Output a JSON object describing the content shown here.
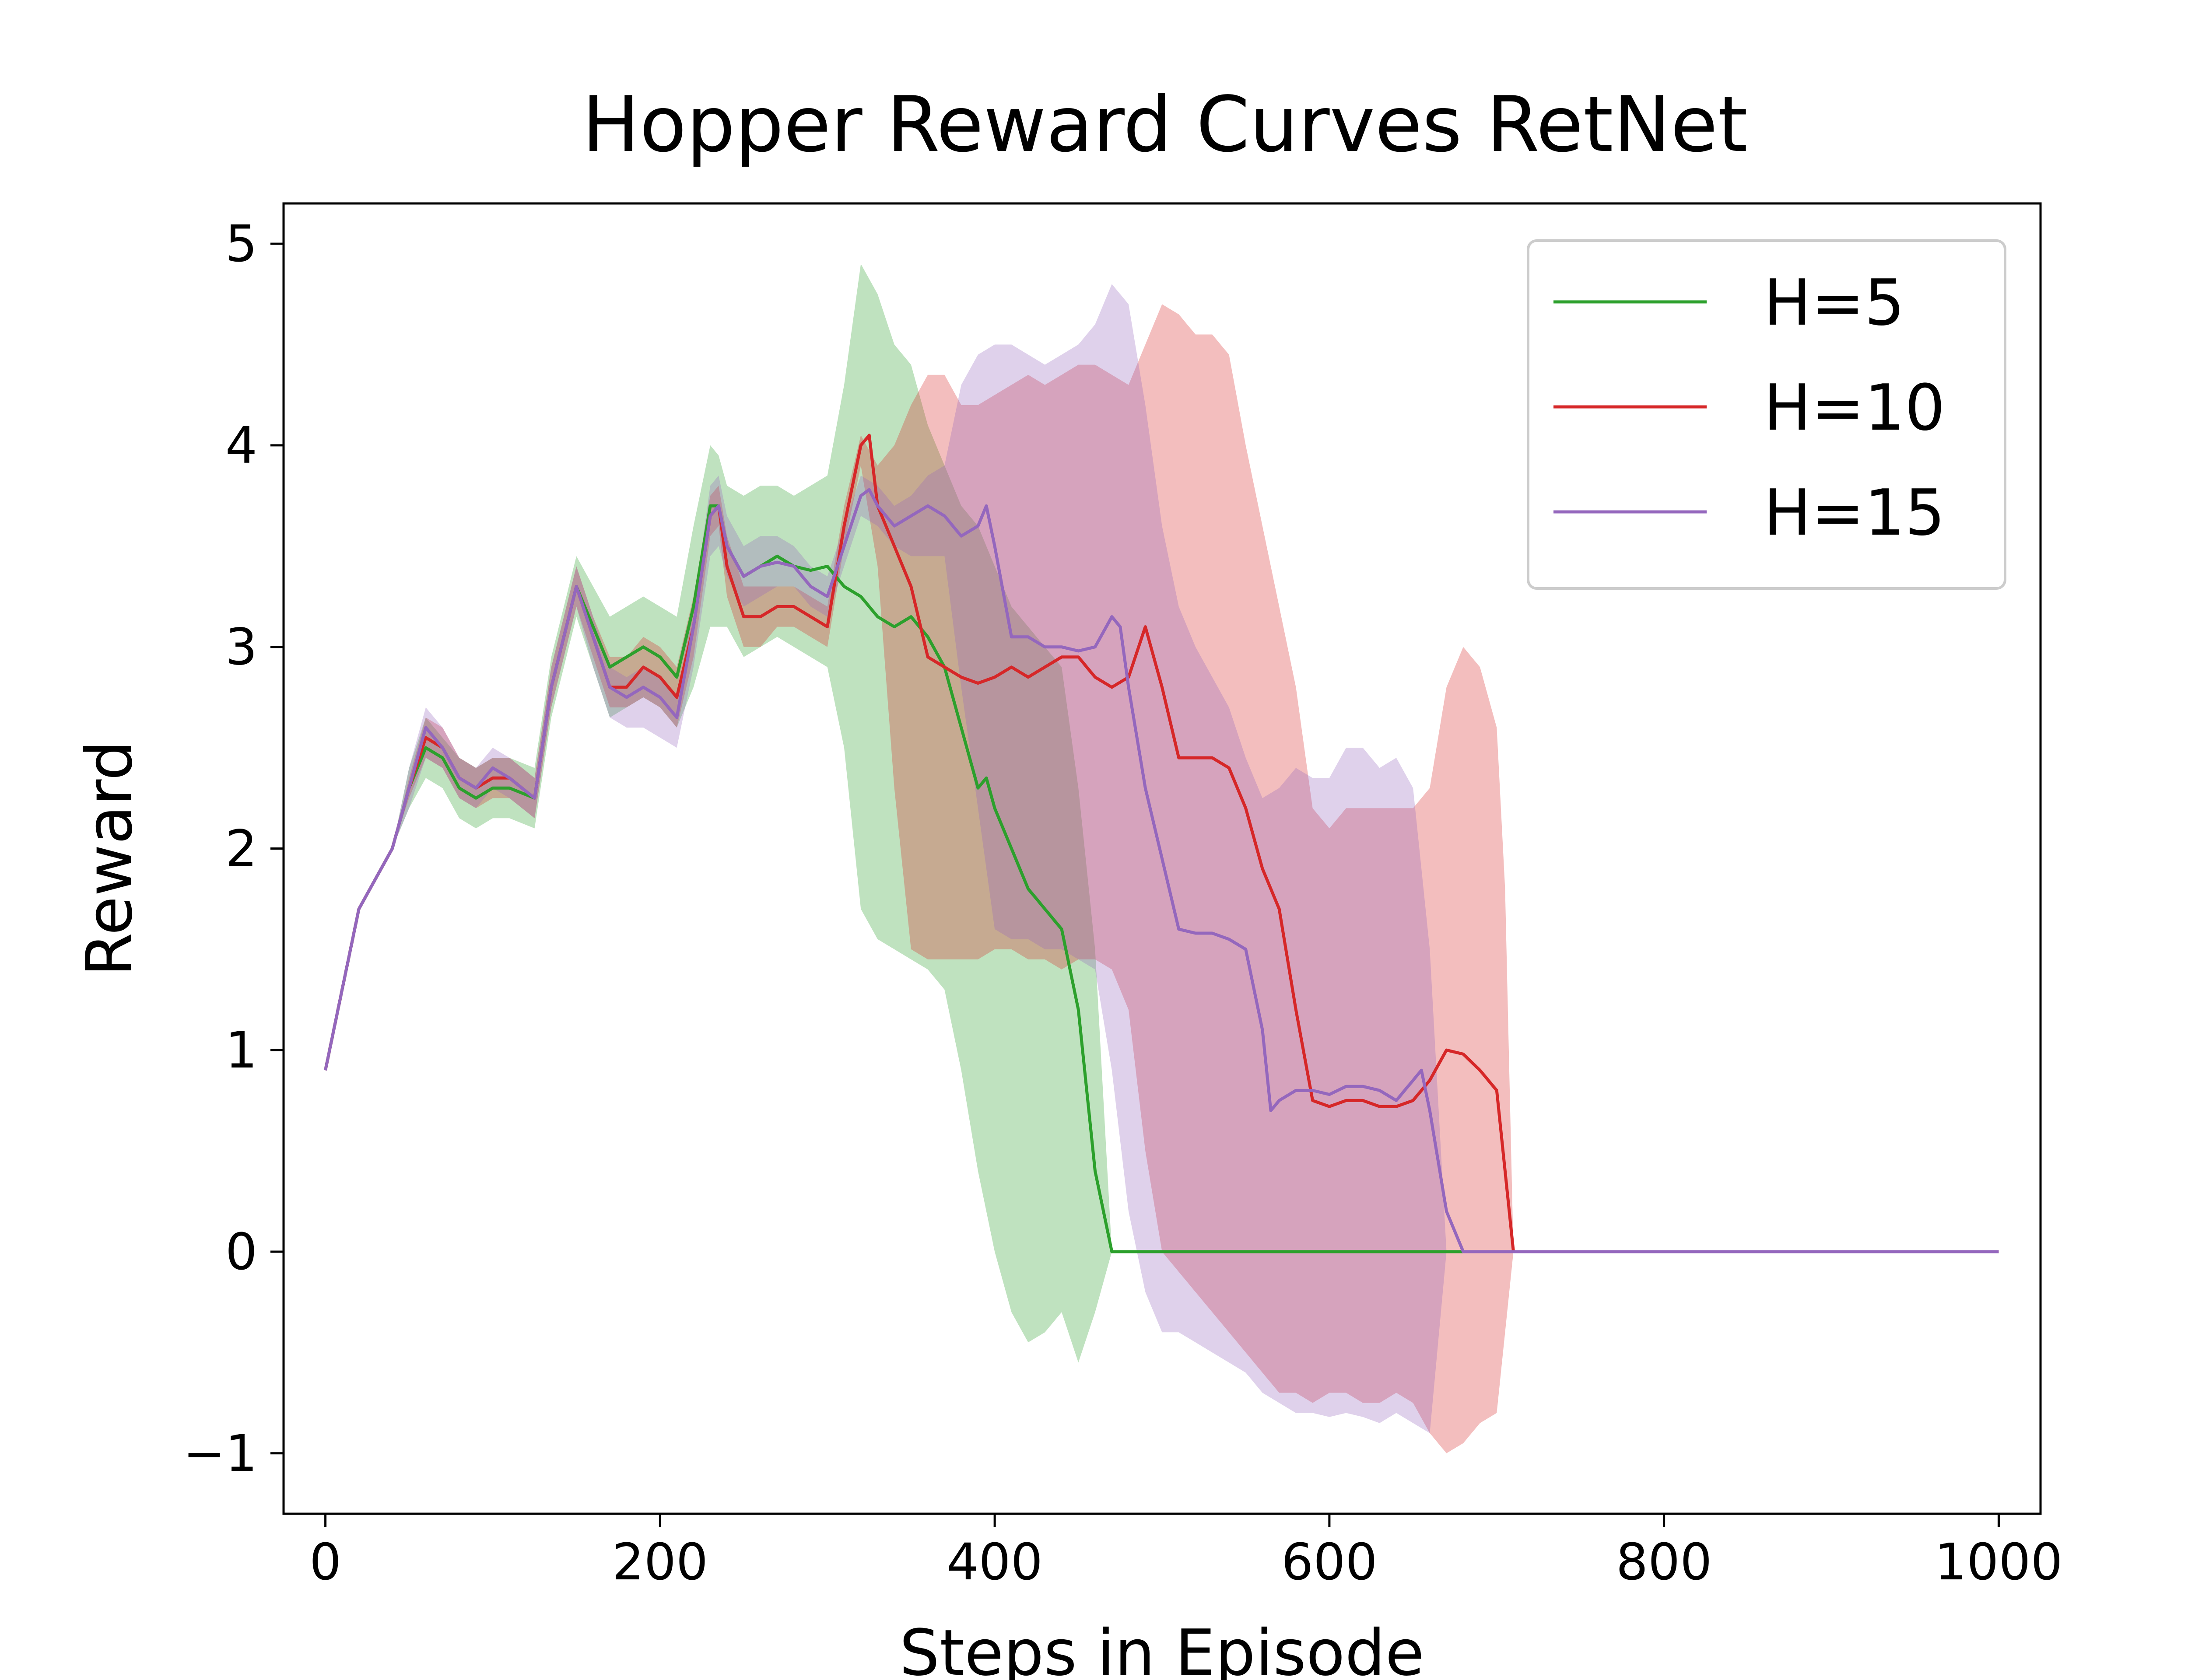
{
  "chart_data": {
    "type": "line",
    "title": "Hopper Reward Curves RetNet",
    "xlabel": "Steps in Episode",
    "ylabel": "Reward",
    "xlim": [
      -25,
      1025
    ],
    "ylim": [
      -1.3,
      5.2
    ],
    "xticks": [
      0,
      200,
      400,
      600,
      800,
      1000
    ],
    "xtick_labels": [
      "0",
      "200",
      "400",
      "600",
      "800",
      "1000"
    ],
    "yticks": [
      -1,
      0,
      1,
      2,
      3,
      4,
      5
    ],
    "ytick_labels": [
      "−1",
      "0",
      "1",
      "2",
      "3",
      "4",
      "5"
    ],
    "grid": false,
    "legend_position": "top-right",
    "series": [
      {
        "name": "H=5",
        "color": "#2ca02c",
        "x": [
          0,
          10,
          20,
          30,
          40,
          50,
          60,
          70,
          80,
          90,
          100,
          110,
          125,
          135,
          150,
          160,
          170,
          180,
          190,
          200,
          210,
          220,
          230,
          235,
          240,
          250,
          260,
          270,
          280,
          290,
          300,
          310,
          320,
          330,
          340,
          350,
          360,
          370,
          380,
          390,
          395,
          400,
          410,
          420,
          430,
          440,
          450,
          460,
          470,
          480,
          500,
          600,
          700,
          800,
          900,
          1000
        ],
        "y": [
          0.9,
          1.3,
          1.7,
          1.85,
          2.0,
          2.3,
          2.5,
          2.45,
          2.3,
          2.25,
          2.3,
          2.3,
          2.25,
          2.8,
          3.3,
          3.1,
          2.9,
          2.95,
          3.0,
          2.95,
          2.85,
          3.2,
          3.7,
          3.7,
          3.5,
          3.35,
          3.4,
          3.45,
          3.4,
          3.38,
          3.4,
          3.3,
          3.25,
          3.15,
          3.1,
          3.15,
          3.05,
          2.9,
          2.6,
          2.3,
          2.35,
          2.2,
          2.0,
          1.8,
          1.7,
          1.6,
          1.2,
          0.4,
          0.0,
          0.0,
          0.0,
          0.0,
          0.0,
          0.0,
          0.0,
          0.0
        ],
        "band_x": [
          0,
          10,
          20,
          30,
          40,
          50,
          60,
          70,
          80,
          90,
          100,
          110,
          125,
          135,
          150,
          160,
          170,
          180,
          190,
          200,
          210,
          220,
          230,
          235,
          240,
          250,
          260,
          270,
          280,
          290,
          300,
          310,
          320,
          330,
          340,
          350,
          360,
          370,
          380,
          390,
          400,
          410,
          420,
          430,
          440,
          450,
          460,
          470
        ],
        "band_upper": [
          0.9,
          1.3,
          1.7,
          1.85,
          2.0,
          2.4,
          2.65,
          2.55,
          2.45,
          2.4,
          2.45,
          2.45,
          2.4,
          2.95,
          3.45,
          3.3,
          3.15,
          3.2,
          3.25,
          3.2,
          3.15,
          3.6,
          4.0,
          3.95,
          3.8,
          3.75,
          3.8,
          3.8,
          3.75,
          3.8,
          3.85,
          4.3,
          4.9,
          4.75,
          4.5,
          4.4,
          4.1,
          3.9,
          3.7,
          3.6,
          3.4,
          3.2,
          3.1,
          3.0,
          2.9,
          2.3,
          1.5,
          0.0
        ],
        "band_lower": [
          0.9,
          1.3,
          1.7,
          1.85,
          2.0,
          2.2,
          2.35,
          2.3,
          2.15,
          2.1,
          2.15,
          2.15,
          2.1,
          2.65,
          3.15,
          2.9,
          2.65,
          2.7,
          2.75,
          2.7,
          2.6,
          2.8,
          3.1,
          3.1,
          3.1,
          2.95,
          3.0,
          3.05,
          3.0,
          2.95,
          2.9,
          2.5,
          1.7,
          1.55,
          1.5,
          1.45,
          1.4,
          1.3,
          0.9,
          0.4,
          0.0,
          -0.3,
          -0.45,
          -0.4,
          -0.3,
          -0.55,
          -0.3,
          0.0
        ]
      },
      {
        "name": "H=10",
        "color": "#d62728",
        "x": [
          0,
          10,
          20,
          30,
          40,
          50,
          60,
          70,
          80,
          90,
          100,
          110,
          125,
          135,
          150,
          160,
          170,
          180,
          190,
          200,
          210,
          220,
          230,
          235,
          240,
          250,
          260,
          270,
          280,
          290,
          300,
          310,
          320,
          325,
          330,
          340,
          350,
          360,
          370,
          380,
          390,
          400,
          410,
          420,
          430,
          440,
          450,
          460,
          470,
          480,
          490,
          500,
          510,
          520,
          530,
          540,
          550,
          560,
          570,
          580,
          590,
          600,
          610,
          620,
          630,
          640,
          650,
          660,
          670,
          680,
          690,
          700,
          705,
          710,
          800,
          900,
          1000
        ],
        "y": [
          0.9,
          1.3,
          1.7,
          1.85,
          2.0,
          2.3,
          2.55,
          2.5,
          2.35,
          2.3,
          2.35,
          2.35,
          2.25,
          2.8,
          3.3,
          3.05,
          2.8,
          2.8,
          2.9,
          2.85,
          2.75,
          3.1,
          3.65,
          3.7,
          3.4,
          3.15,
          3.15,
          3.2,
          3.2,
          3.15,
          3.1,
          3.6,
          4.0,
          4.05,
          3.7,
          3.5,
          3.3,
          2.95,
          2.9,
          2.85,
          2.82,
          2.85,
          2.9,
          2.85,
          2.9,
          2.95,
          2.95,
          2.85,
          2.8,
          2.85,
          3.1,
          2.8,
          2.45,
          2.45,
          2.45,
          2.4,
          2.2,
          1.9,
          1.7,
          1.2,
          0.75,
          0.72,
          0.75,
          0.75,
          0.72,
          0.72,
          0.75,
          0.85,
          1.0,
          0.98,
          0.9,
          0.8,
          0.4,
          0.0,
          0.0,
          0.0,
          0.0
        ],
        "band_x": [
          0,
          10,
          20,
          30,
          40,
          50,
          60,
          70,
          80,
          90,
          100,
          110,
          125,
          135,
          150,
          160,
          170,
          180,
          190,
          200,
          210,
          220,
          230,
          235,
          240,
          250,
          260,
          270,
          280,
          290,
          300,
          310,
          320,
          330,
          340,
          350,
          360,
          370,
          380,
          390,
          400,
          410,
          420,
          430,
          440,
          450,
          460,
          470,
          480,
          490,
          500,
          510,
          520,
          530,
          540,
          550,
          560,
          570,
          580,
          590,
          600,
          610,
          620,
          630,
          640,
          650,
          660,
          670,
          680,
          690,
          700,
          705,
          710
        ],
        "band_upper": [
          0.9,
          1.3,
          1.7,
          1.85,
          2.0,
          2.35,
          2.65,
          2.6,
          2.45,
          2.4,
          2.45,
          2.45,
          2.35,
          2.9,
          3.4,
          3.15,
          2.95,
          2.95,
          3.05,
          3.0,
          2.9,
          3.25,
          3.75,
          3.8,
          3.55,
          3.3,
          3.3,
          3.3,
          3.3,
          3.25,
          3.2,
          3.7,
          4.05,
          3.9,
          4.0,
          4.2,
          4.35,
          4.35,
          4.2,
          4.2,
          4.25,
          4.3,
          4.35,
          4.3,
          4.35,
          4.4,
          4.4,
          4.35,
          4.3,
          4.5,
          4.7,
          4.65,
          4.55,
          4.55,
          4.45,
          4.0,
          3.6,
          3.2,
          2.8,
          2.2,
          2.1,
          2.2,
          2.2,
          2.2,
          2.2,
          2.2,
          2.3,
          2.8,
          3.0,
          2.9,
          2.6,
          1.8,
          0.0
        ],
        "band_lower": [
          0.9,
          1.3,
          1.7,
          1.85,
          2.0,
          2.25,
          2.45,
          2.4,
          2.25,
          2.2,
          2.25,
          2.25,
          2.15,
          2.7,
          3.2,
          2.95,
          2.7,
          2.7,
          2.75,
          2.7,
          2.6,
          2.95,
          3.55,
          3.6,
          3.25,
          3.0,
          3.0,
          3.1,
          3.1,
          3.05,
          3.0,
          3.5,
          3.9,
          3.4,
          2.3,
          1.5,
          1.45,
          1.45,
          1.45,
          1.45,
          1.5,
          1.5,
          1.45,
          1.45,
          1.4,
          1.45,
          1.45,
          1.4,
          1.2,
          0.5,
          0.0,
          -0.1,
          -0.2,
          -0.3,
          -0.4,
          -0.5,
          -0.6,
          -0.7,
          -0.7,
          -0.75,
          -0.7,
          -0.7,
          -0.75,
          -0.75,
          -0.7,
          -0.75,
          -0.9,
          -1.0,
          -0.95,
          -0.85,
          -0.8,
          -0.4,
          0.0
        ]
      },
      {
        "name": "H=15",
        "color": "#9467bd",
        "x": [
          0,
          10,
          20,
          30,
          40,
          50,
          60,
          70,
          80,
          90,
          100,
          110,
          125,
          135,
          150,
          160,
          170,
          180,
          190,
          200,
          210,
          220,
          230,
          235,
          240,
          250,
          260,
          270,
          280,
          290,
          300,
          310,
          320,
          325,
          330,
          340,
          350,
          360,
          370,
          380,
          390,
          395,
          400,
          410,
          420,
          430,
          440,
          450,
          460,
          470,
          475,
          480,
          490,
          500,
          510,
          520,
          530,
          540,
          550,
          560,
          565,
          570,
          580,
          590,
          600,
          610,
          620,
          630,
          640,
          650,
          655,
          660,
          670,
          680,
          700,
          800,
          900,
          1000
        ],
        "y": [
          0.9,
          1.3,
          1.7,
          1.85,
          2.0,
          2.3,
          2.6,
          2.5,
          2.35,
          2.3,
          2.4,
          2.35,
          2.25,
          2.8,
          3.3,
          3.05,
          2.8,
          2.75,
          2.8,
          2.75,
          2.65,
          3.1,
          3.65,
          3.7,
          3.5,
          3.35,
          3.4,
          3.42,
          3.4,
          3.3,
          3.25,
          3.5,
          3.75,
          3.78,
          3.7,
          3.6,
          3.65,
          3.7,
          3.65,
          3.55,
          3.6,
          3.7,
          3.5,
          3.05,
          3.05,
          3.0,
          3.0,
          2.98,
          3.0,
          3.15,
          3.1,
          2.8,
          2.3,
          1.95,
          1.6,
          1.58,
          1.58,
          1.55,
          1.5,
          1.1,
          0.7,
          0.75,
          0.8,
          0.8,
          0.78,
          0.82,
          0.82,
          0.8,
          0.75,
          0.85,
          0.9,
          0.7,
          0.2,
          0.0,
          0.0,
          0.0,
          0.0,
          0.0
        ],
        "band_x": [
          0,
          10,
          20,
          30,
          40,
          50,
          60,
          70,
          80,
          90,
          100,
          110,
          125,
          135,
          150,
          160,
          170,
          180,
          190,
          200,
          210,
          220,
          230,
          235,
          240,
          250,
          260,
          270,
          280,
          290,
          300,
          310,
          320,
          330,
          340,
          350,
          360,
          370,
          380,
          390,
          400,
          410,
          420,
          430,
          440,
          450,
          460,
          470,
          480,
          490,
          500,
          510,
          520,
          530,
          540,
          550,
          560,
          570,
          580,
          590,
          600,
          610,
          620,
          630,
          640,
          650,
          660,
          670
        ],
        "band_upper": [
          0.9,
          1.3,
          1.7,
          1.85,
          2.0,
          2.4,
          2.7,
          2.6,
          2.45,
          2.4,
          2.5,
          2.45,
          2.35,
          2.9,
          3.4,
          3.15,
          2.9,
          2.85,
          2.9,
          2.85,
          2.75,
          3.2,
          3.8,
          3.85,
          3.65,
          3.5,
          3.55,
          3.55,
          3.5,
          3.4,
          3.35,
          3.6,
          3.85,
          3.8,
          3.7,
          3.75,
          3.85,
          3.9,
          4.3,
          4.45,
          4.5,
          4.5,
          4.45,
          4.4,
          4.45,
          4.5,
          4.6,
          4.8,
          4.7,
          4.2,
          3.6,
          3.2,
          3.0,
          2.85,
          2.7,
          2.45,
          2.25,
          2.3,
          2.4,
          2.35,
          2.35,
          2.5,
          2.5,
          2.4,
          2.45,
          2.3,
          1.5,
          0.0
        ],
        "band_lower": [
          0.9,
          1.3,
          1.7,
          1.85,
          2.0,
          2.2,
          2.45,
          2.4,
          2.25,
          2.2,
          2.3,
          2.25,
          2.15,
          2.7,
          3.2,
          2.9,
          2.65,
          2.6,
          2.6,
          2.55,
          2.5,
          2.9,
          3.45,
          3.5,
          3.35,
          3.2,
          3.25,
          3.3,
          3.3,
          3.2,
          3.15,
          3.4,
          3.65,
          3.6,
          3.5,
          3.45,
          3.45,
          3.45,
          2.8,
          2.2,
          1.6,
          1.55,
          1.55,
          1.5,
          1.5,
          1.45,
          1.4,
          0.9,
          0.2,
          -0.2,
          -0.4,
          -0.4,
          -0.45,
          -0.5,
          -0.55,
          -0.6,
          -0.7,
          -0.75,
          -0.8,
          -0.8,
          -0.82,
          -0.8,
          -0.82,
          -0.85,
          -0.8,
          -0.85,
          -0.9,
          0.0
        ]
      }
    ]
  }
}
